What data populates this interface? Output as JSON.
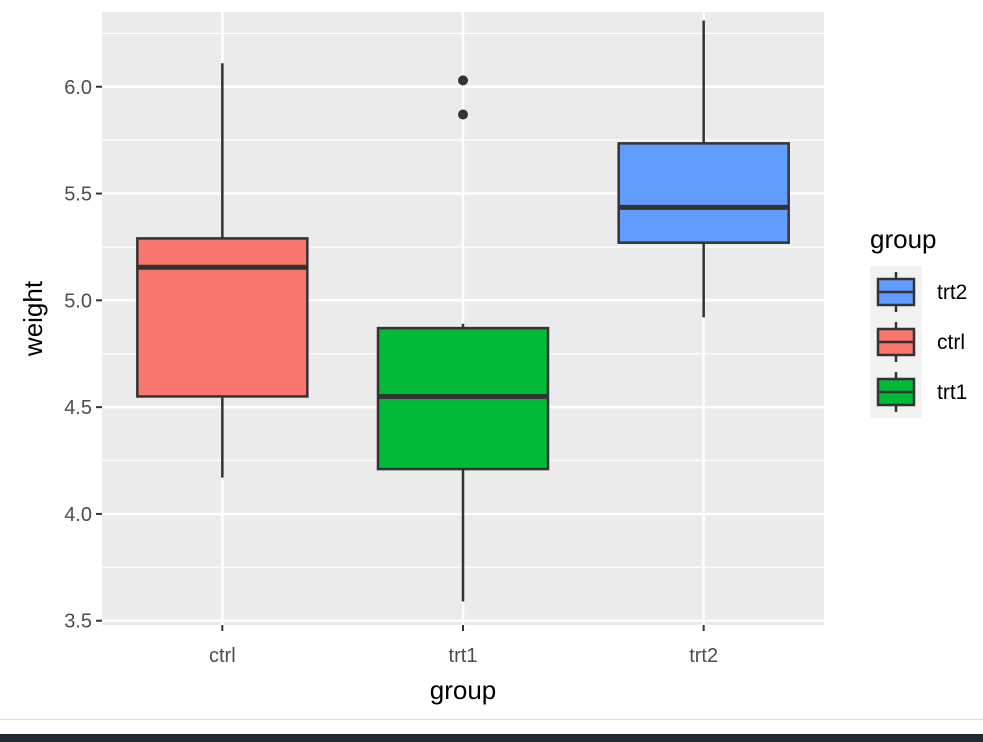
{
  "chart_data": {
    "type": "boxplot",
    "xlabel": "group",
    "ylabel": "weight",
    "categories": [
      "ctrl",
      "trt1",
      "trt2"
    ],
    "ylim": [
      3.48,
      6.35
    ],
    "yticks": [
      "3.5",
      "4.0",
      "4.5",
      "5.0",
      "5.5",
      "6.0"
    ],
    "grid": true,
    "boxes": [
      {
        "category": "ctrl",
        "min": 4.17,
        "q1": 4.55,
        "median": 5.155,
        "q3": 5.29,
        "max": 6.11,
        "outliers": [],
        "color": "#F8766D"
      },
      {
        "category": "trt1",
        "min": 3.59,
        "q1": 4.21,
        "median": 4.55,
        "q3": 4.87,
        "max": 4.89,
        "outliers": [
          5.87,
          6.03
        ],
        "color": "#00BA38"
      },
      {
        "category": "trt2",
        "min": 4.92,
        "q1": 5.27,
        "median": 5.435,
        "q3": 5.735,
        "max": 6.31,
        "outliers": [],
        "color": "#619CFF"
      }
    ],
    "legend": {
      "title": "group",
      "position": "right",
      "entries": [
        {
          "label": "trt2",
          "color": "#619CFF"
        },
        {
          "label": "ctrl",
          "color": "#F8766D"
        },
        {
          "label": "trt1",
          "color": "#00BA38"
        }
      ]
    }
  },
  "colors": {
    "panel_bg": "#EBEBEB",
    "grid": "#FFFFFF",
    "box_line": "#333333",
    "legend_key_bg": "#F2F2F2"
  }
}
